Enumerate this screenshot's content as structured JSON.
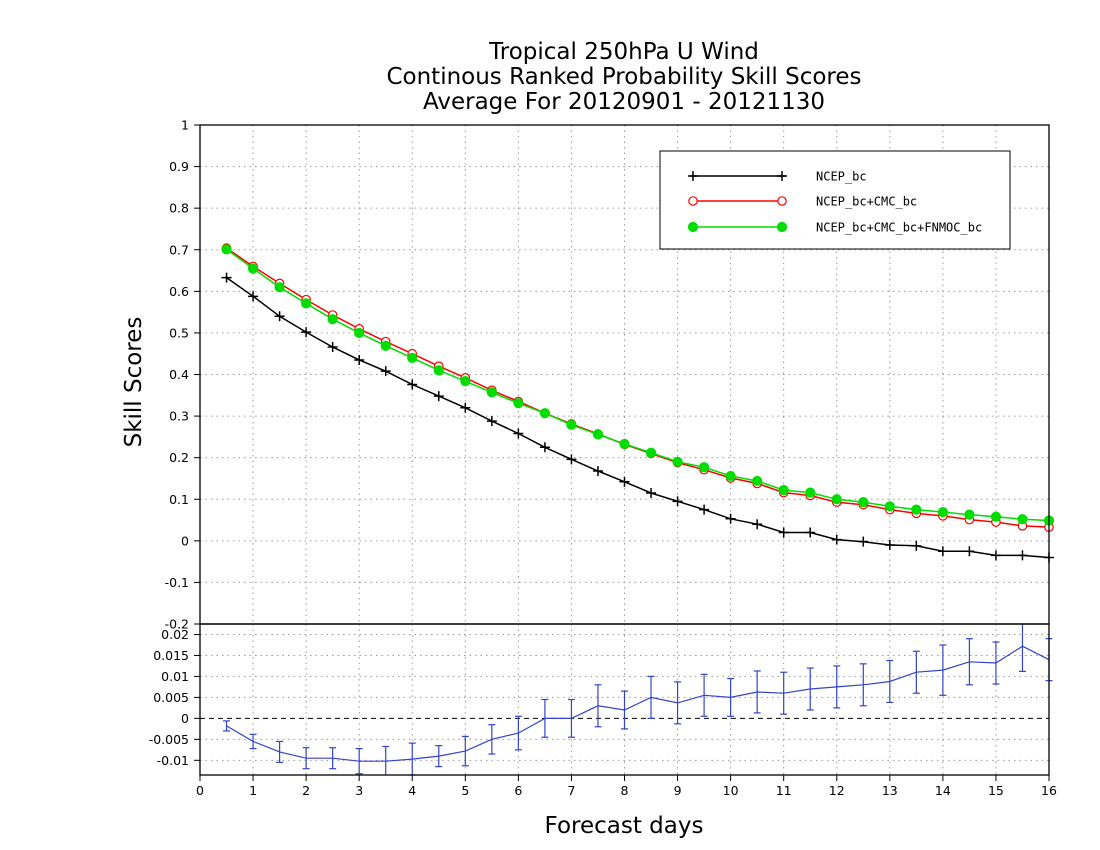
{
  "chart_data": {
    "type": "line",
    "title": [
      "Tropical 250hPa U Wind",
      "Continous Ranked Probability Skill Scores",
      "Average For 20120901 - 20121130"
    ],
    "xlabel": "Forecast days",
    "ylabel": "Skill Scores",
    "xlim": [
      0,
      16
    ],
    "xticks": [
      "0",
      "1",
      "2",
      "3",
      "4",
      "5",
      "6",
      "7",
      "8",
      "9",
      "10",
      "11",
      "12",
      "13",
      "14",
      "15",
      "16"
    ],
    "x": [
      0.5,
      1,
      1.5,
      2,
      2.5,
      3,
      3.5,
      4,
      4.5,
      5,
      5.5,
      6,
      6.5,
      7,
      7.5,
      8,
      8.5,
      9,
      9.5,
      10,
      10.5,
      11,
      11.5,
      12,
      12.5,
      13,
      13.5,
      14,
      14.5,
      15,
      15.5,
      16
    ],
    "grid": true,
    "legend_position": "top-right",
    "top_panel": {
      "ylim": [
        -0.2,
        1
      ],
      "yticks": [
        "1",
        "0.9",
        "0.8",
        "0.7",
        "0.6",
        "0.5",
        "0.4",
        "0.3",
        "0.2",
        "0.1",
        "0",
        "-0.1",
        "-0.2"
      ],
      "series": [
        {
          "name": "NCEP_bc",
          "color": "#000000",
          "marker": "plus",
          "values": [
            0.633,
            0.588,
            0.54,
            0.502,
            0.466,
            0.435,
            0.408,
            0.376,
            0.348,
            0.32,
            0.288,
            0.258,
            0.225,
            0.196,
            0.168,
            0.142,
            0.115,
            0.095,
            0.075,
            0.053,
            0.04,
            0.02,
            0.02,
            0.003,
            -0.002,
            -0.01,
            -0.012,
            -0.025,
            -0.025,
            -0.035,
            -0.035,
            -0.04
          ]
        },
        {
          "name": "NCEP_bc+CMC_bc",
          "color": "#ff0000",
          "marker": "open-circle",
          "values": [
            0.704,
            0.66,
            0.619,
            0.58,
            0.543,
            0.51,
            0.479,
            0.45,
            0.42,
            0.392,
            0.362,
            0.335,
            0.307,
            0.281,
            0.257,
            0.232,
            0.21,
            0.188,
            0.171,
            0.151,
            0.138,
            0.116,
            0.109,
            0.093,
            0.087,
            0.075,
            0.066,
            0.06,
            0.051,
            0.045,
            0.036,
            0.033
          ]
        },
        {
          "name": "NCEP_bc+CMC_bc+FNMOC_bc",
          "color": "#00dd00",
          "marker": "filled-circle",
          "values": [
            0.701,
            0.655,
            0.61,
            0.571,
            0.533,
            0.5,
            0.469,
            0.44,
            0.41,
            0.384,
            0.357,
            0.331,
            0.307,
            0.279,
            0.256,
            0.233,
            0.212,
            0.19,
            0.177,
            0.156,
            0.144,
            0.122,
            0.116,
            0.1,
            0.093,
            0.083,
            0.075,
            0.069,
            0.063,
            0.058,
            0.052,
            0.049
          ]
        }
      ]
    },
    "bottom_panel": {
      "ylim": [
        -0.0135,
        0.0225
      ],
      "yticks": [
        "0.02",
        "0.015",
        "0.01",
        "0.005",
        "0",
        "-0.005",
        "-0.01"
      ],
      "series": [
        {
          "color": "#3344cc",
          "values": [
            -0.0018,
            -0.0055,
            -0.008,
            -0.0095,
            -0.0095,
            -0.0102,
            -0.0102,
            -0.0097,
            -0.009,
            -0.0078,
            -0.005,
            -0.0035,
            0,
            0,
            0.003,
            0.002,
            0.005,
            0.0037,
            0.0055,
            0.005,
            0.0063,
            0.006,
            0.007,
            0.0075,
            0.008,
            0.0088,
            0.011,
            0.0115,
            0.0135,
            0.0132,
            0.0172,
            0.014
          ],
          "errors": [
            0.0012,
            0.0017,
            0.0025,
            0.0025,
            0.0025,
            0.003,
            0.0035,
            0.0038,
            0.0025,
            0.0035,
            0.0035,
            0.004,
            0.0045,
            0.0045,
            0.005,
            0.0045,
            0.005,
            0.005,
            0.005,
            0.0045,
            0.005,
            0.005,
            0.005,
            0.005,
            0.005,
            0.005,
            0.005,
            0.006,
            0.0055,
            0.005,
            0.006,
            0.005
          ]
        }
      ]
    }
  }
}
